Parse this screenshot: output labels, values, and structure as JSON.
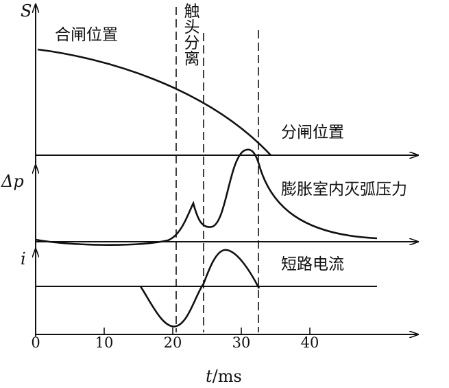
{
  "labels": {
    "s_axis": "S",
    "close_position": "合闸位置",
    "contact_separation": "触头分离",
    "open_position": "分闸位置",
    "dp_axis": "Δp",
    "pressure": "膨胀室内灭弧压力",
    "i_axis": "i",
    "current": "短路电流",
    "t_symbol": "t",
    "t_unit": "/ms"
  },
  "xticks": [
    0,
    10,
    20,
    30,
    40
  ]
}
